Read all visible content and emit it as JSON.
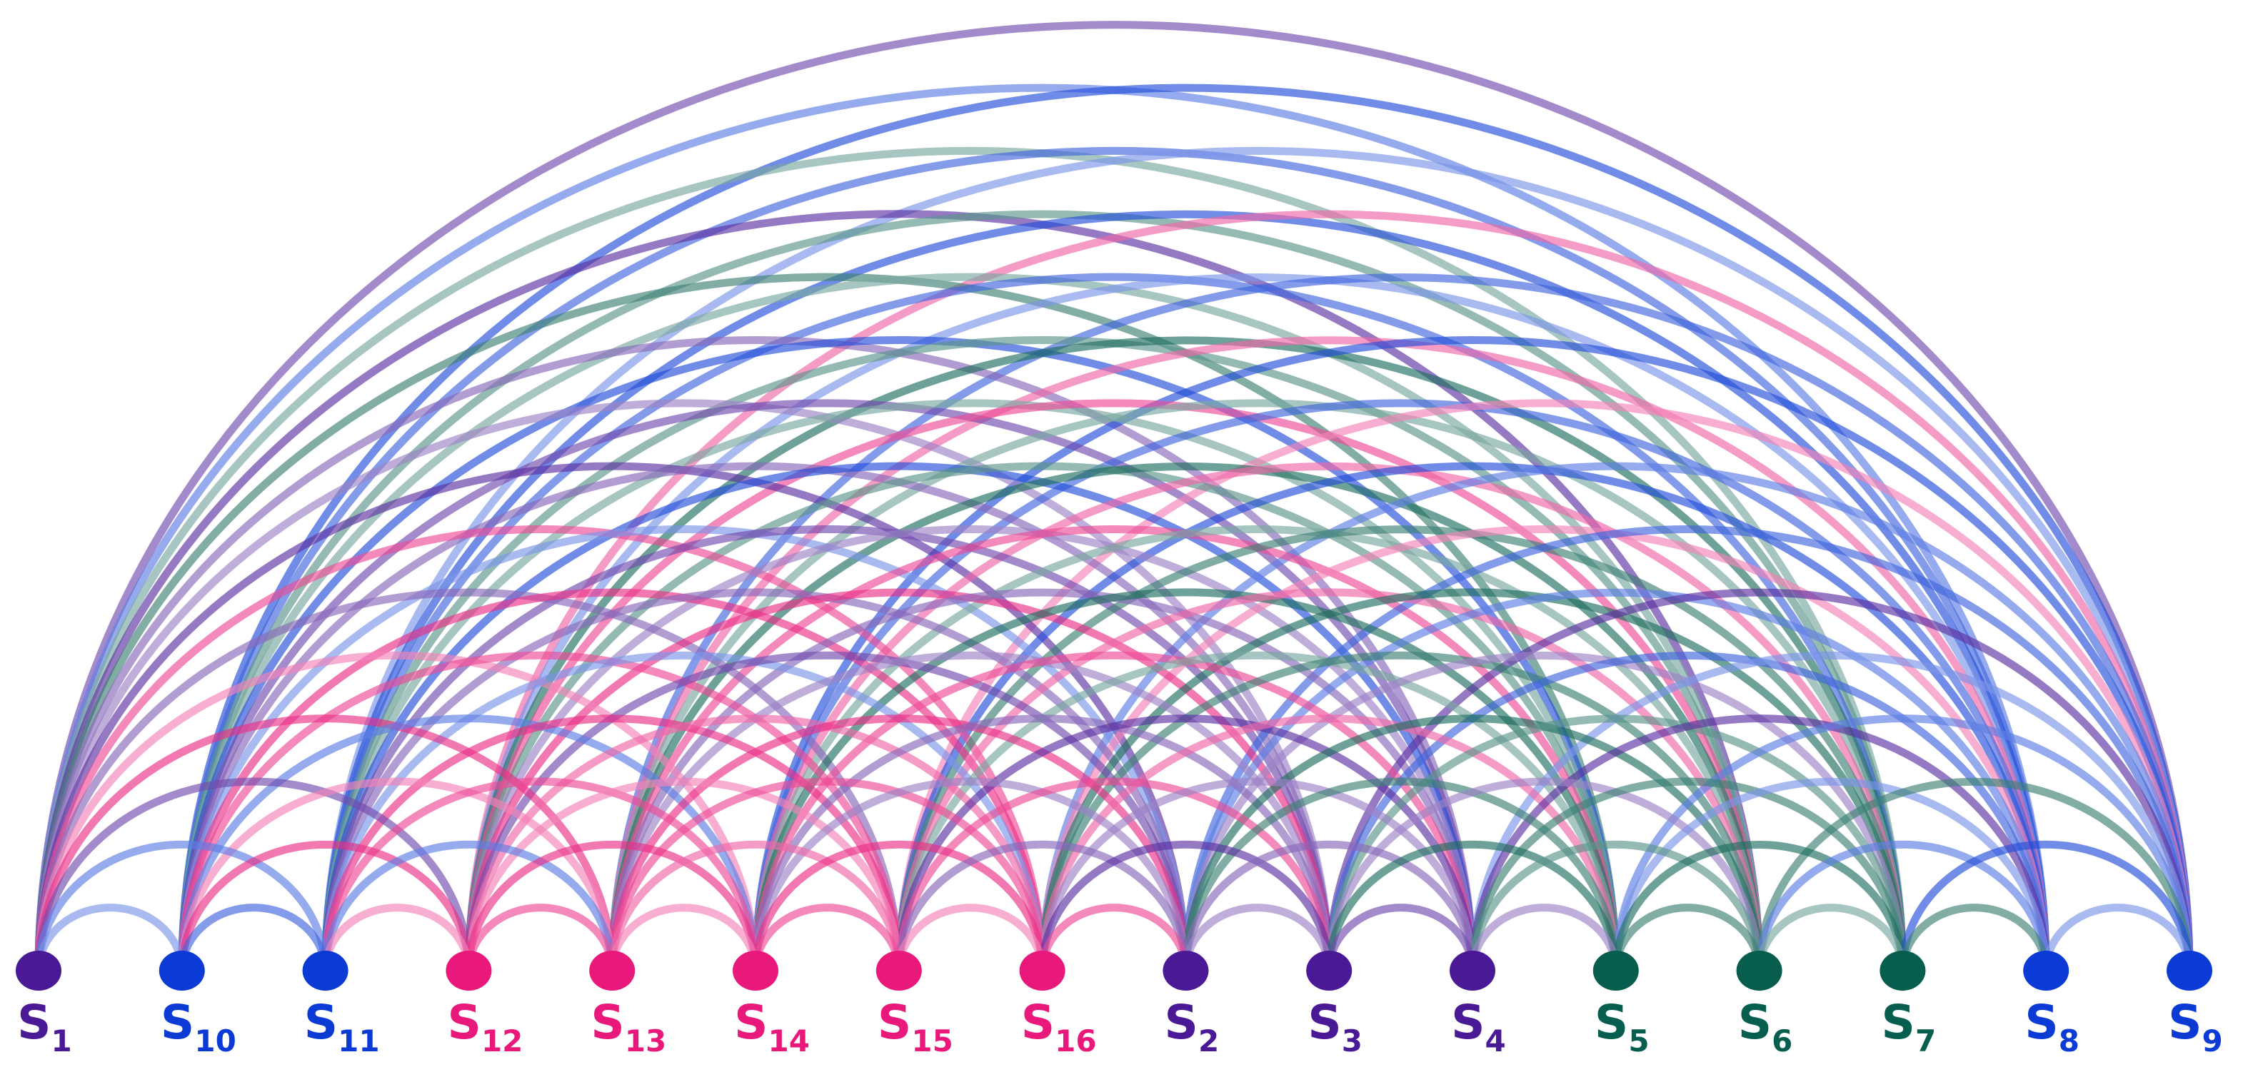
{
  "nodes": [
    {
      "name": "S",
      "sub": "1",
      "color": "#4a1a96"
    },
    {
      "name": "S",
      "sub": "10",
      "color": "#0b3bd4"
    },
    {
      "name": "S",
      "sub": "11",
      "color": "#0b3bd4"
    },
    {
      "name": "S",
      "sub": "12",
      "color": "#e8197a"
    },
    {
      "name": "S",
      "sub": "13",
      "color": "#e8197a"
    },
    {
      "name": "S",
      "sub": "14",
      "color": "#e8197a"
    },
    {
      "name": "S",
      "sub": "15",
      "color": "#e8197a"
    },
    {
      "name": "S",
      "sub": "16",
      "color": "#e8197a"
    },
    {
      "name": "S",
      "sub": "2",
      "color": "#4a1a96"
    },
    {
      "name": "S",
      "sub": "3",
      "color": "#4a1a96"
    },
    {
      "name": "S",
      "sub": "4",
      "color": "#4a1a96"
    },
    {
      "name": "S",
      "sub": "5",
      "color": "#075e4e"
    },
    {
      "name": "S",
      "sub": "6",
      "color": "#075e4e"
    },
    {
      "name": "S",
      "sub": "7",
      "color": "#075e4e"
    },
    {
      "name": "S",
      "sub": "8",
      "color": "#0b3bd4"
    },
    {
      "name": "S",
      "sub": "9",
      "color": "#0b3bd4"
    }
  ]
}
